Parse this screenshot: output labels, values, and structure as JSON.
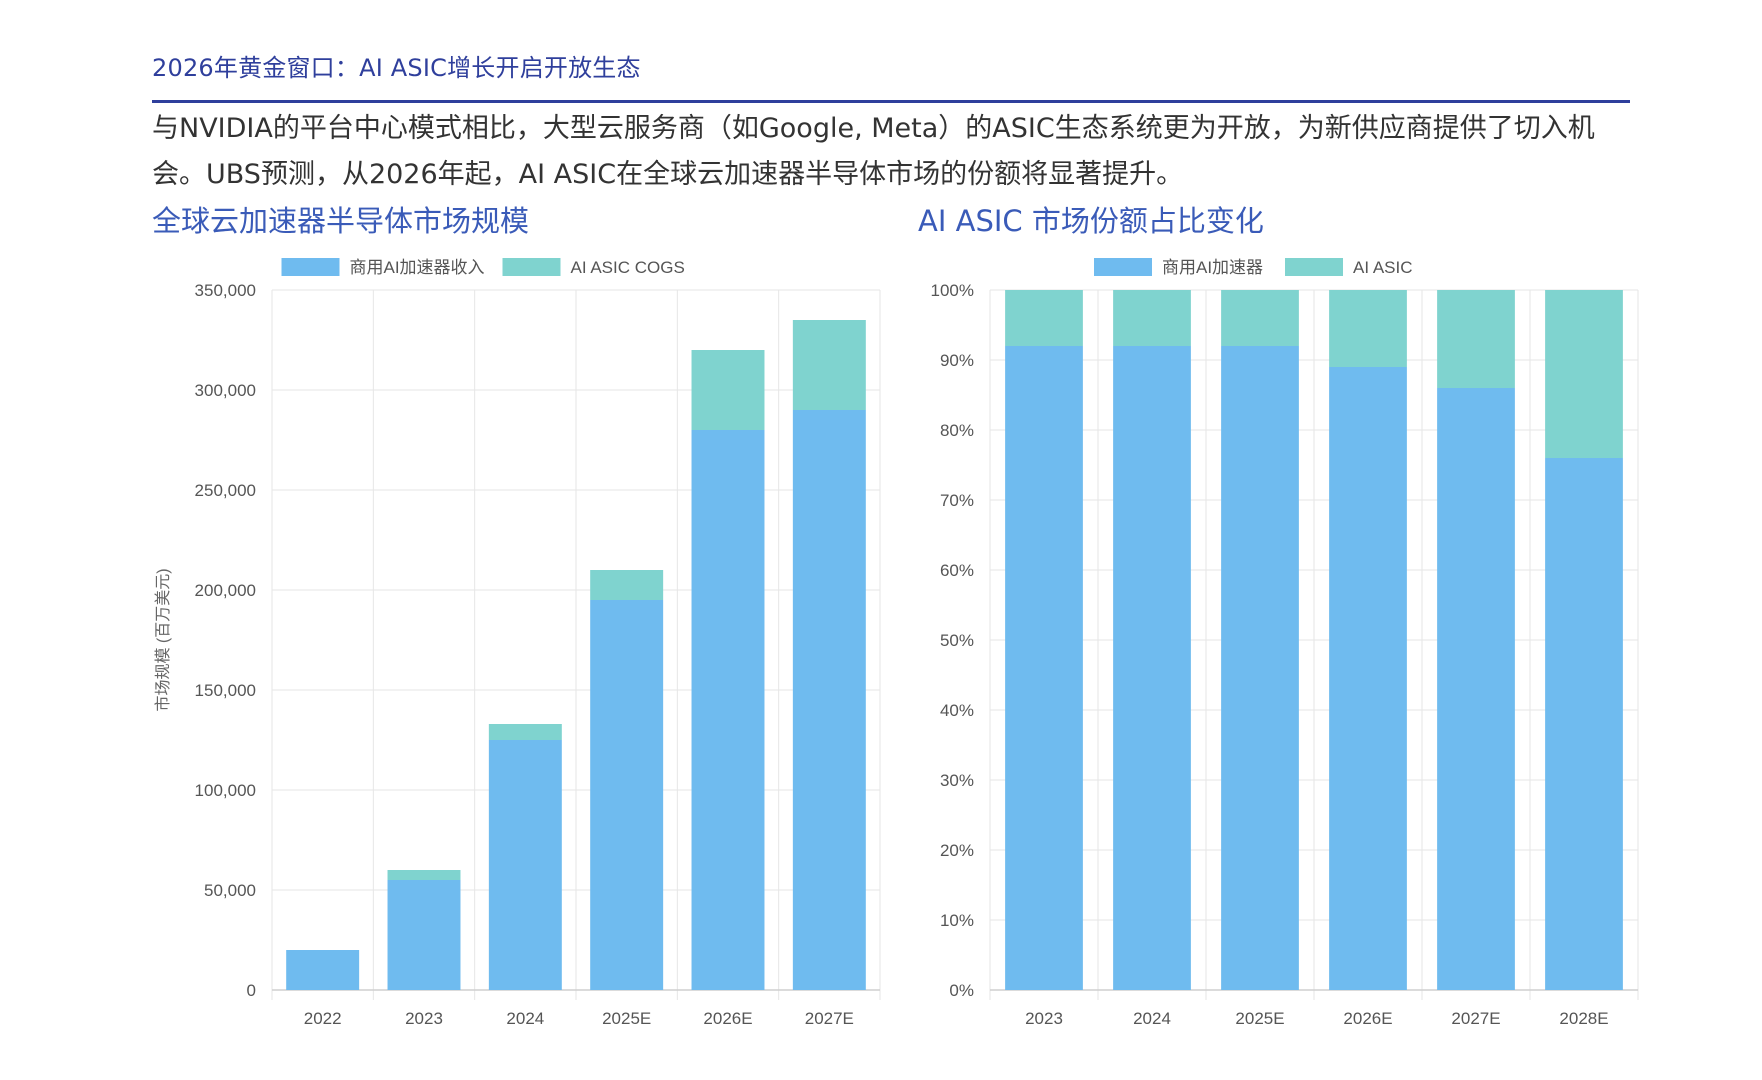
{
  "header": {
    "title": "2026年黄金窗口：AI ASIC增长开启开放生态"
  },
  "intro": {
    "text": "与NVIDIA的平台中心模式相比，大型云服务商（如Google, Meta）的ASIC生态系统更为开放，为新供应商提供了切入机会。UBS预测，从2026年起，AI ASIC在全球云加速器半导体市场的份额将显著提升。"
  },
  "colors": {
    "accent_dark": "#2f3f9c",
    "title_blue": "#3a5bb8",
    "series_blue": "#6fbbef",
    "series_teal": "#7fd3cf"
  },
  "chart_data": [
    {
      "type": "bar",
      "stacked": true,
      "title": "全球云加速器半导体市场规模",
      "xlabel": "",
      "ylabel": "市场规模 (百万美元)",
      "categories": [
        "2022",
        "2023",
        "2024",
        "2025E",
        "2026E",
        "2027E"
      ],
      "series": [
        {
          "name": "商用AI加速器收入",
          "color": "#6fbbef",
          "values": [
            20000,
            55000,
            125000,
            195000,
            280000,
            290000
          ]
        },
        {
          "name": "AI ASIC COGS",
          "color": "#7fd3cf",
          "values": [
            0,
            5000,
            8000,
            15000,
            40000,
            45000
          ]
        }
      ],
      "ylim": [
        0,
        350000
      ],
      "yticks": [
        "0",
        "50,000",
        "100,000",
        "150,000",
        "200,000",
        "250,000",
        "300,000",
        "350,000"
      ],
      "grid": true,
      "legend": "top"
    },
    {
      "type": "bar",
      "stacked": true,
      "title": "AI ASIC 市场份额占比变化",
      "xlabel": "",
      "ylabel": "",
      "categories": [
        "2023",
        "2024",
        "2025E",
        "2026E",
        "2027E",
        "2028E"
      ],
      "series": [
        {
          "name": "商用AI加速器",
          "color": "#6fbbef",
          "values": [
            92,
            92,
            92,
            89,
            86,
            76
          ]
        },
        {
          "name": "AI ASIC",
          "color": "#7fd3cf",
          "values": [
            8,
            8,
            8,
            11,
            14,
            24
          ]
        }
      ],
      "ylim": [
        0,
        100
      ],
      "yticks": [
        "0%",
        "10%",
        "20%",
        "30%",
        "40%",
        "50%",
        "60%",
        "70%",
        "80%",
        "90%",
        "100%"
      ],
      "grid": true,
      "legend": "top"
    }
  ]
}
